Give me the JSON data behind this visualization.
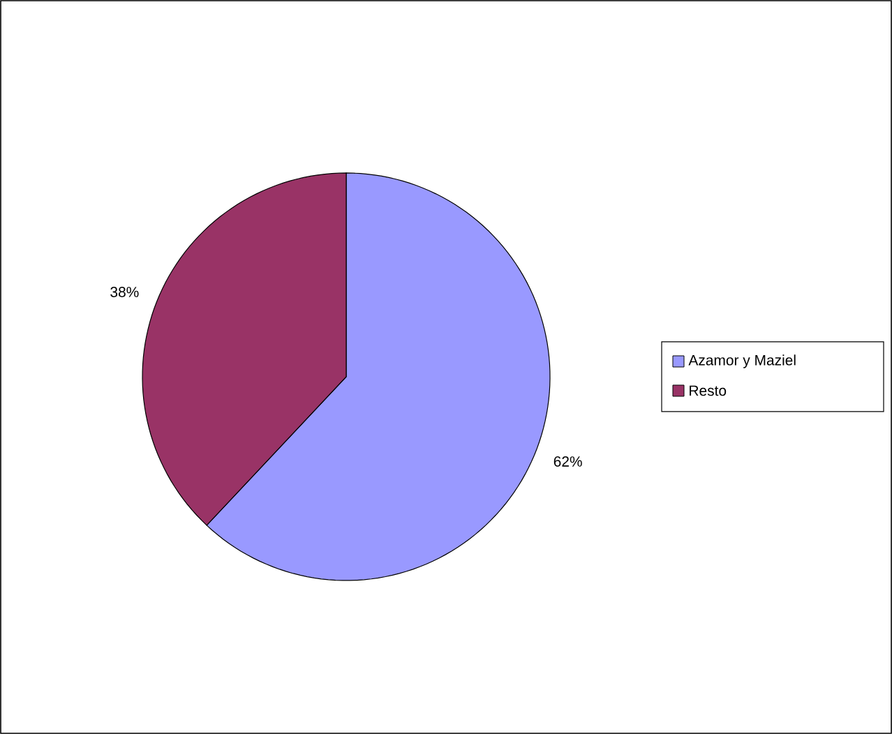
{
  "chart_data": {
    "type": "pie",
    "categories": [
      "Azamor y Maziel",
      "Resto"
    ],
    "values": [
      62,
      38
    ],
    "colors": [
      "#9999ff",
      "#993366"
    ],
    "value_labels": [
      "62%",
      "38%"
    ],
    "legend": "right"
  }
}
